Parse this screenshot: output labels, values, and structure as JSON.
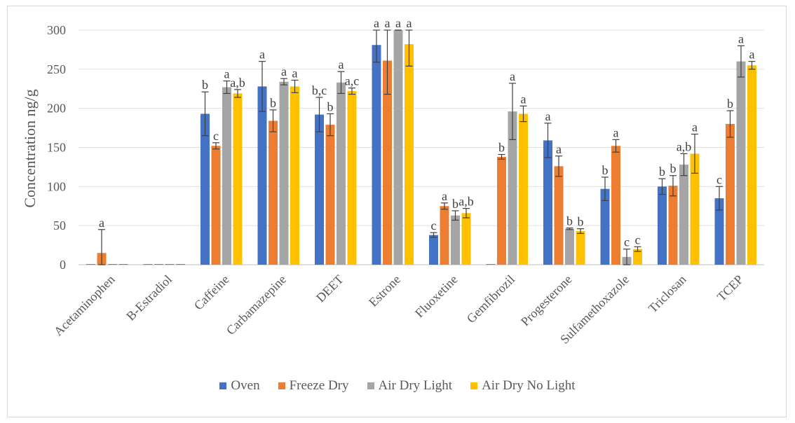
{
  "chart_data": {
    "type": "bar",
    "ylabel": "Concentration ng/g",
    "ylim": [
      0,
      300
    ],
    "yticks": [
      0,
      50,
      100,
      150,
      200,
      250,
      300
    ],
    "grid": true,
    "legend_position": "bottom",
    "categories": [
      "Acetaminophen",
      "B-Estradiol",
      "Caffeine",
      "Carbamazepine",
      "DEET",
      "Estrone",
      "Fluoxetine",
      "Gemfibrozil",
      "Progesterone",
      "Sulfamethoxazole",
      "Triclosan",
      "TCEP"
    ],
    "series": [
      {
        "name": "Oven",
        "color": "#4472c4",
        "values": [
          0,
          0,
          193,
          228,
          192,
          281,
          38,
          0,
          159,
          97,
          100,
          85
        ],
        "error": [
          0,
          0,
          28,
          32,
          22,
          22,
          3,
          0,
          22,
          15,
          10,
          15
        ],
        "labels": [
          "",
          "",
          "b",
          "a",
          "b,c",
          "a",
          "c",
          "",
          "a",
          "b",
          "b",
          "c"
        ]
      },
      {
        "name": "Freeze Dry",
        "color": "#ed7d31",
        "values": [
          15,
          0,
          152,
          184,
          179,
          261,
          75,
          138,
          126,
          152,
          101,
          180
        ],
        "error": [
          30,
          0,
          4,
          14,
          14,
          43,
          4,
          3,
          13,
          8,
          13,
          17
        ],
        "labels": [
          "a",
          "",
          "c",
          "b",
          "b",
          "a",
          "a",
          "b",
          "a",
          "a",
          "b",
          "b"
        ]
      },
      {
        "name": "Air Dry Light",
        "color": "#a5a5a5",
        "values": [
          0,
          0,
          227,
          234,
          233,
          300,
          63,
          196,
          46,
          10,
          128,
          260
        ],
        "error": [
          0,
          0,
          8,
          4,
          14,
          0,
          6,
          36,
          1,
          10,
          14,
          20
        ],
        "labels": [
          "",
          "",
          "a",
          "a",
          "a",
          "a",
          "b",
          "a",
          "b",
          "c",
          "a,b",
          "a"
        ]
      },
      {
        "name": "Air Dry No Light",
        "color": "#ffc000",
        "values": [
          0,
          0,
          219,
          228,
          222,
          282,
          66,
          193,
          43,
          20,
          142,
          255
        ],
        "error": [
          0,
          0,
          5,
          8,
          4,
          28,
          6,
          10,
          3,
          3,
          25,
          5
        ],
        "labels": [
          "",
          "",
          "a,b",
          "a",
          "a,c",
          "a",
          "a,b",
          "a",
          "b",
          "c",
          "a",
          "a"
        ]
      }
    ]
  }
}
